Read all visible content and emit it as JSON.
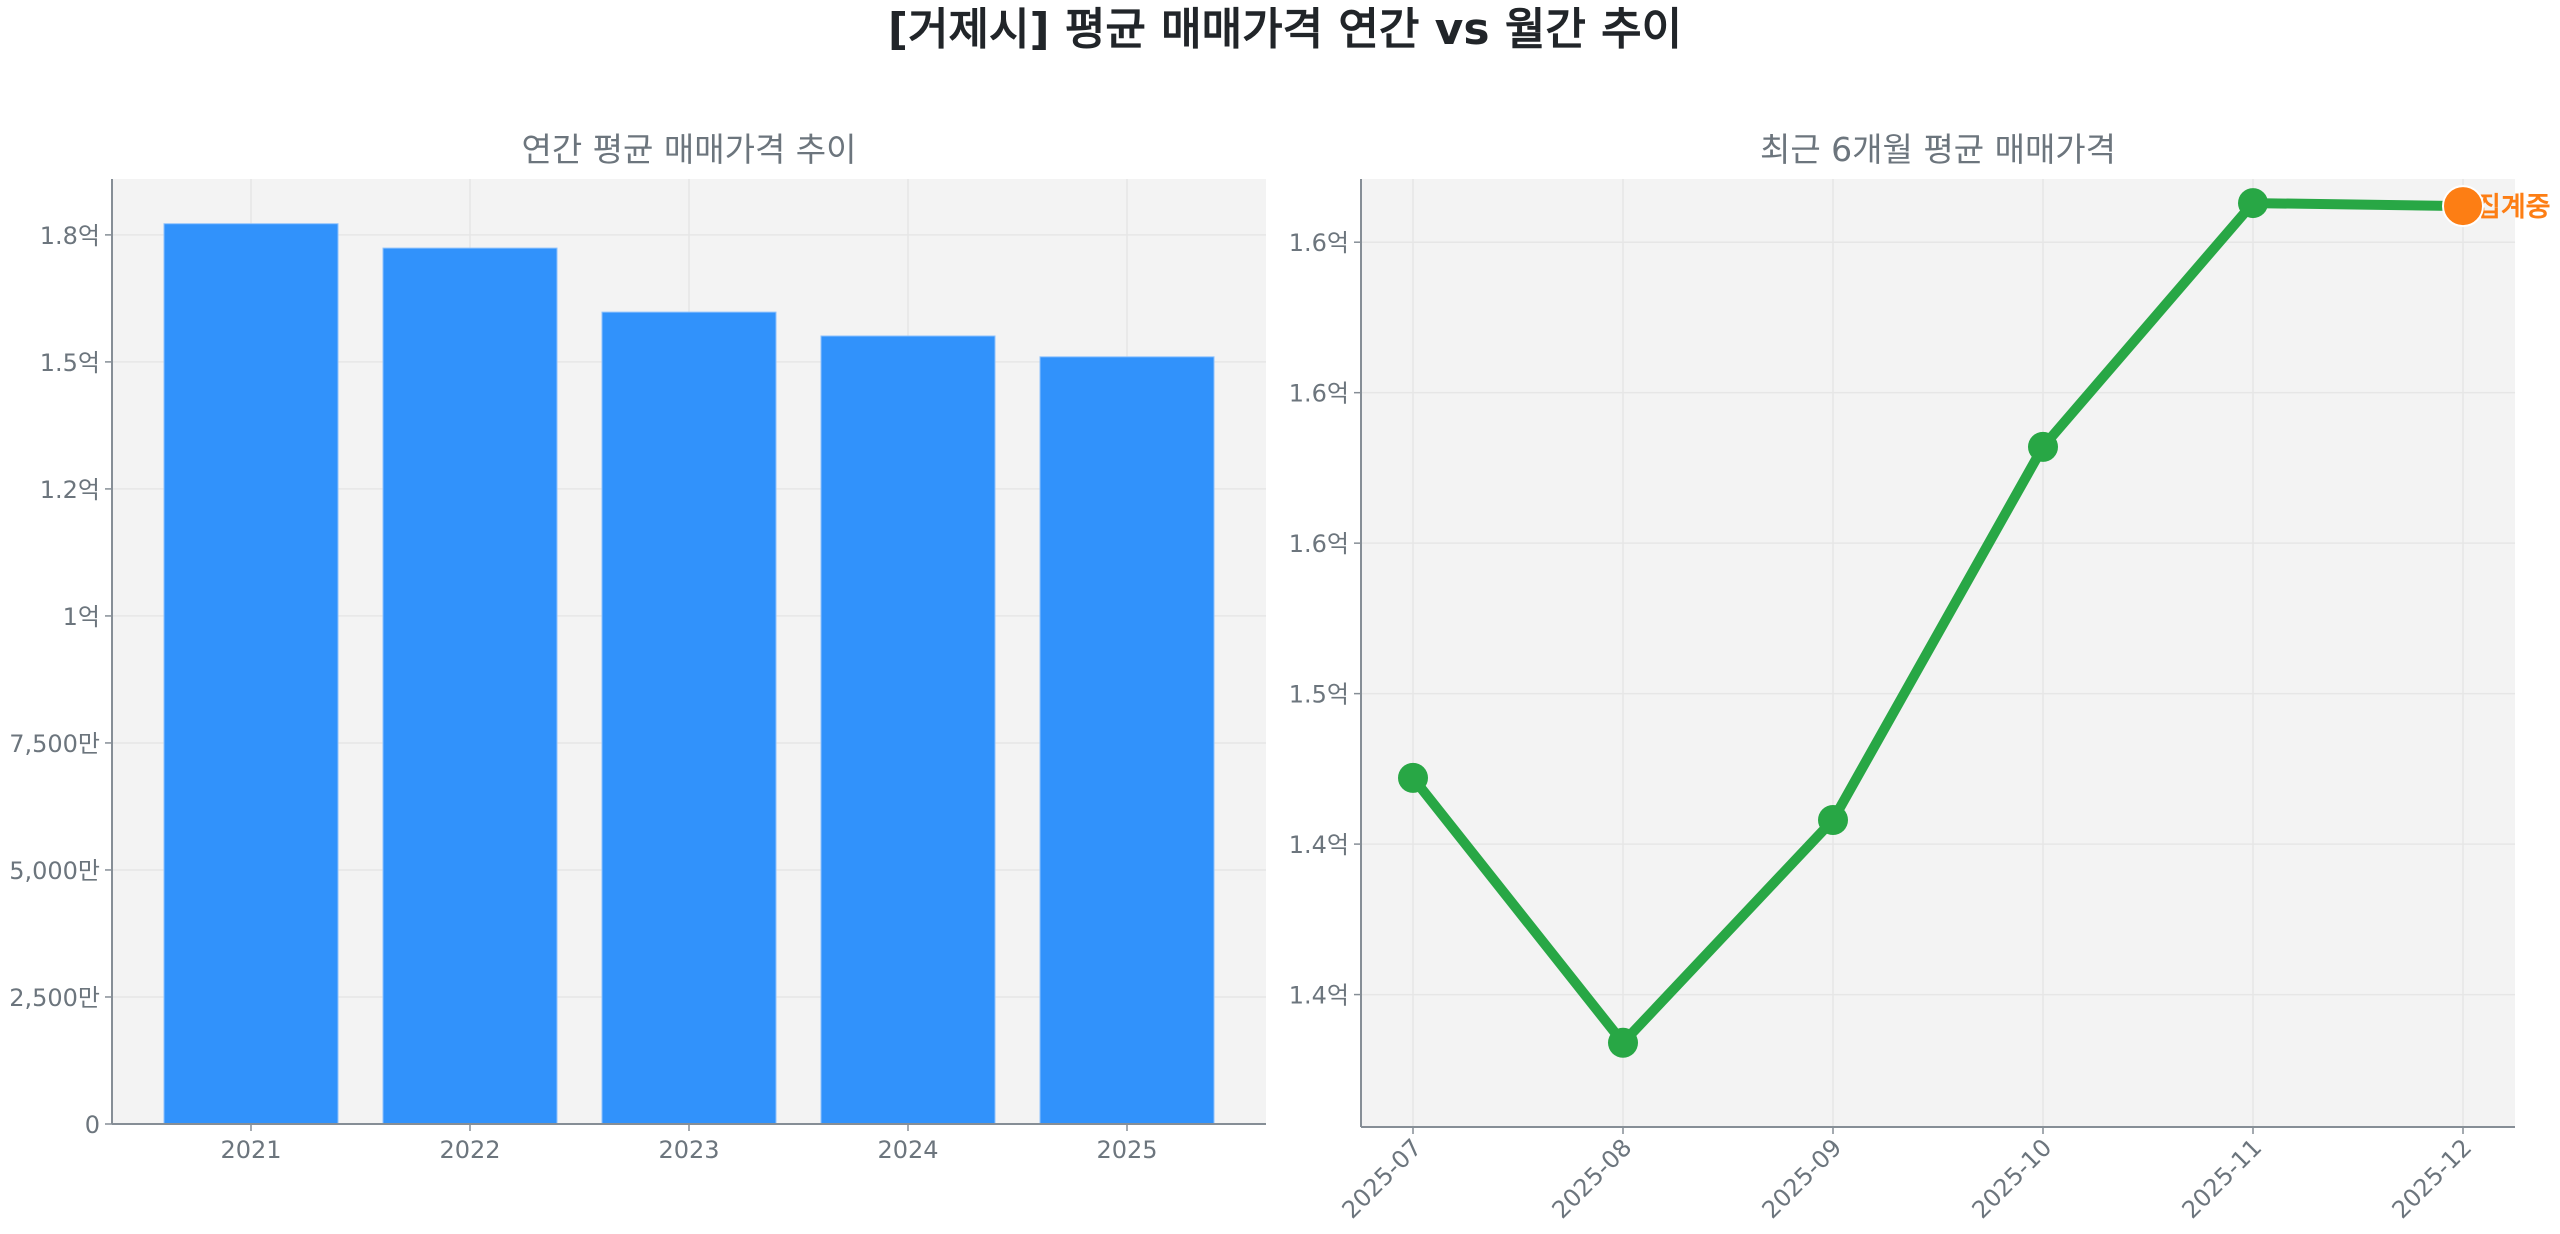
{
  "figure": {
    "title": "[거제시] 평균 매매가격 연간 vs 월간 추이",
    "background": "#ffffff",
    "plot_background": "#f3f3f3",
    "grid_color": "#e6e6e6",
    "axis_color": "#868e96",
    "tick_label_color": "#6c757d",
    "title_color": "#212529"
  },
  "chart_data": [
    {
      "type": "bar",
      "title": "연간 평균 매매가격 추이",
      "xlabel": "",
      "ylabel": "",
      "categories": [
        "2021",
        "2022",
        "2023",
        "2024",
        "2025"
      ],
      "values": [
        177200000,
        172400000,
        159800000,
        155100000,
        151000000
      ],
      "value_unit": "원",
      "color": "#3192fb",
      "ylim": [
        0,
        186000000
      ],
      "yticks": [
        0,
        25000000,
        50000000,
        75000000,
        100000000,
        125000000,
        150000000,
        175000000
      ],
      "ytick_labels": [
        "0",
        "2,500만",
        "5,000만",
        "7,500만",
        "1억",
        "1.2억",
        "1.5억",
        "1.8억"
      ],
      "grid": true,
      "legend": null
    },
    {
      "type": "line",
      "title": "최근 6개월 평균 매매가격",
      "xlabel": "",
      "ylabel": "",
      "x": [
        "2025-07",
        "2025-08",
        "2025-09",
        "2025-10",
        "2025-11",
        "2025-12"
      ],
      "values": [
        147200000,
        138400000,
        145800000,
        158200000,
        166300000,
        166200000
      ],
      "value_unit": "원",
      "line_color": "#28a745",
      "marker_color": "#28a745",
      "highlight": {
        "index": 5,
        "color": "#fd7e14",
        "label": "집계중"
      },
      "ylim": [
        135600000,
        167100000
      ],
      "yticks": [
        140000000,
        145000000,
        150000000,
        155000000,
        160000000,
        165000000
      ],
      "ytick_labels": [
        "1.4억",
        "1.4억",
        "1.5억",
        "1.6억",
        "1.6억",
        "1.6억"
      ],
      "xtick_rotation": 45,
      "grid": true,
      "legend": null
    }
  ]
}
